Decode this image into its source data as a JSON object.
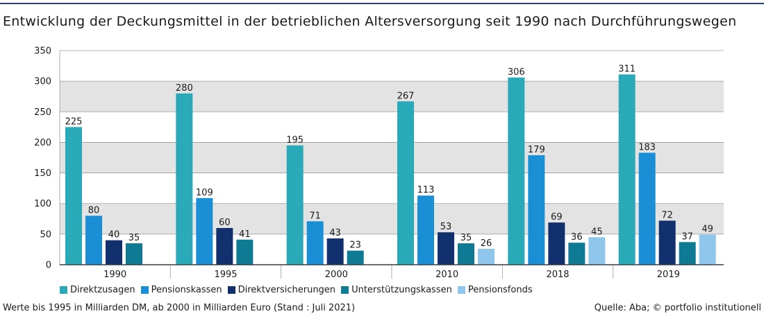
{
  "title": "Entwicklung der Deckungsmittel in der betrieblichen Altersversorgung seit 1990 nach Durchführungswegen",
  "footnote": "Werte bis 1995 in Milliarden DM, ab 2000 in Milliarden Euro (Stand : Juli 2021)",
  "source": "Quelle: Aba; © portfolio institutionell",
  "chart_data": {
    "type": "bar",
    "categories": [
      "1990",
      "1995",
      "2000",
      "2010",
      "2018",
      "2019"
    ],
    "ylim": [
      0,
      350
    ],
    "yticks": [
      0,
      50,
      100,
      150,
      200,
      250,
      300,
      350
    ],
    "grid": true,
    "legend_position": "bottom",
    "series": [
      {
        "name": "Direktzusagen",
        "color": "#2aa9b8",
        "values": [
          225,
          280,
          195,
          267,
          306,
          311
        ]
      },
      {
        "name": "Pensionskassen",
        "color": "#1a8fd6",
        "values": [
          80,
          109,
          71,
          113,
          179,
          183
        ]
      },
      {
        "name": "Direktversicherungen",
        "color": "#13306e",
        "values": [
          40,
          60,
          43,
          53,
          69,
          72
        ]
      },
      {
        "name": "Unterstützungskassen",
        "color": "#0e7a93",
        "values": [
          35,
          41,
          23,
          35,
          36,
          37
        ]
      },
      {
        "name": "Pensionsfonds",
        "color": "#8fc6ec",
        "values": [
          null,
          null,
          null,
          26,
          45,
          49
        ]
      }
    ]
  }
}
